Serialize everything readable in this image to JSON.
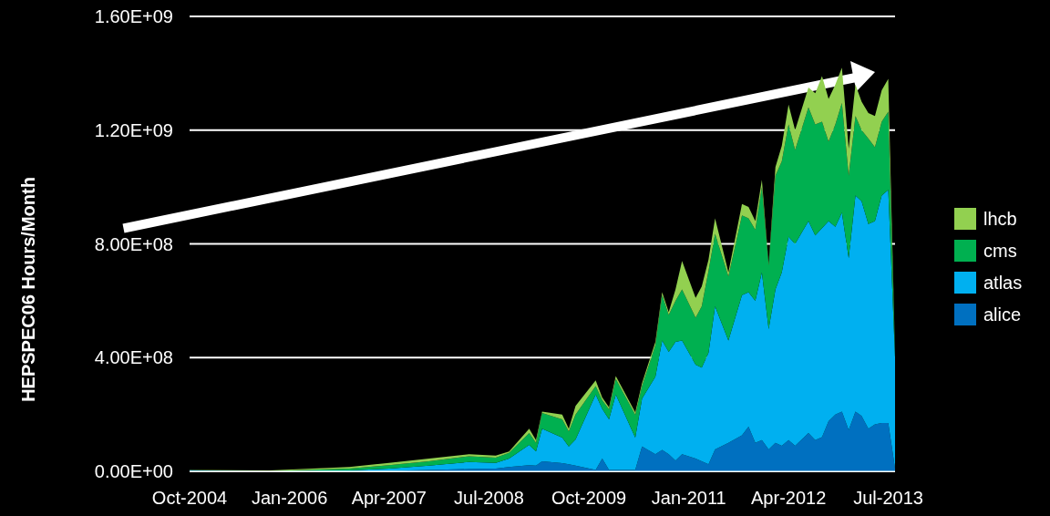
{
  "chart_data": {
    "type": "area",
    "stacked": true,
    "ylabel": "HEPSPEC06 Hours/Month",
    "x": [
      "2004-10",
      "2005-10",
      "2006-10",
      "2007-04",
      "2007-10",
      "2008-04",
      "2008-08",
      "2008-10",
      "2009-01",
      "2009-02",
      "2009-03",
      "2009-06",
      "2009-07",
      "2009-08",
      "2009-11",
      "2009-12",
      "2010-01",
      "2010-02",
      "2010-05",
      "2010-06",
      "2010-08",
      "2010-09",
      "2010-10",
      "2010-11",
      "2010-12",
      "2011-02",
      "2011-03",
      "2011-04",
      "2011-05",
      "2011-07",
      "2011-09",
      "2011-10",
      "2011-11",
      "2011-12",
      "2012-01",
      "2012-02",
      "2012-03",
      "2012-04",
      "2012-05",
      "2012-07",
      "2012-08",
      "2012-09",
      "2012-10",
      "2012-11",
      "2012-12",
      "2013-01",
      "2013-02",
      "2013-03",
      "2013-04",
      "2013-05",
      "2013-06",
      "2013-07",
      "2013-08"
    ],
    "series": [
      {
        "name": "alice",
        "color": "#0070c0",
        "values": [
          1000000.0,
          0,
          0,
          2000000.0,
          5000000.0,
          8000000.0,
          10000000.0,
          15000000.0,
          22000000.0,
          20000000.0,
          35000000.0,
          29000000.0,
          25000000.0,
          20000000.0,
          5000000.0,
          45000000.0,
          5000000.0,
          5000000.0,
          5000000.0,
          87000000.0,
          60000000.0,
          75000000.0,
          60000000.0,
          38000000.0,
          60000000.0,
          45000000.0,
          35000000.0,
          25000000.0,
          77000000.0,
          100000000.0,
          127000000.0,
          157000000.0,
          100000000.0,
          110000000.0,
          77000000.0,
          100000000.0,
          90000000.0,
          110000000.0,
          90000000.0,
          135000000.0,
          110000000.0,
          120000000.0,
          176000000.0,
          200000000.0,
          210000000.0,
          145000000.0,
          210000000.0,
          195000000.0,
          150000000.0,
          165000000.0,
          170000000.0,
          170000000.0,
          10000000.0
        ]
      },
      {
        "name": "atlas",
        "color": "#00b0f0",
        "values": [
          3000000.0,
          0,
          3000000.0,
          8000000.0,
          15000000.0,
          25000000.0,
          20000000.0,
          30000000.0,
          71000000.0,
          50000000.0,
          115000000.0,
          90000000.0,
          62000000.0,
          92000000.0,
          265000000.0,
          175000000.0,
          178000000.0,
          265000000.0,
          114000000.0,
          169000000.0,
          273000000.0,
          385000000.0,
          360000000.0,
          417000000.0,
          400000000.0,
          330000000.0,
          330000000.0,
          392000000.0,
          503000000.0,
          360000000.0,
          493000000.0,
          473000000.0,
          500000000.0,
          590000000.0,
          423000000.0,
          540000000.0,
          610000000.0,
          715000000.0,
          710000000.0,
          745000000.0,
          720000000.0,
          735000000.0,
          704000000.0,
          660000000.0,
          700000000.0,
          605000000.0,
          760000000.0,
          755000000.0,
          720000000.0,
          715000000.0,
          800000000.0,
          820000000.0,
          390000000.0
        ]
      },
      {
        "name": "cms",
        "color": "#00b050",
        "values": [
          0,
          1000000.0,
          7000000.0,
          12000000.0,
          15000000.0,
          20000000.0,
          18000000.0,
          20000000.0,
          42000000.0,
          30000000.0,
          55000000.0,
          64000000.0,
          53000000.0,
          88000000.0,
          30000000.0,
          30000000.0,
          35000000.0,
          55000000.0,
          80000000.0,
          44000000.0,
          110000000.0,
          160000000.0,
          130000000.0,
          145000000.0,
          180000000.0,
          165000000.0,
          215000000.0,
          288000000.0,
          255000000.0,
          225000000.0,
          280000000.0,
          260000000.0,
          250000000.0,
          300000000.0,
          225000000.0,
          400000000.0,
          390000000.0,
          395000000.0,
          330000000.0,
          400000000.0,
          390000000.0,
          375000000.0,
          280000000.0,
          360000000.0,
          385000000.0,
          290000000.0,
          280000000.0,
          250000000.0,
          300000000.0,
          260000000.0,
          260000000.0,
          275000000.0,
          10000000.0
        ]
      },
      {
        "name": "lhcb",
        "color": "#92d050",
        "values": [
          1000000.0,
          2000000.0,
          5000000.0,
          8000000.0,
          10000000.0,
          7000000.0,
          7000000.0,
          5000000.0,
          15000000.0,
          10000000.0,
          5000000.0,
          17000000.0,
          10000000.0,
          30000000.0,
          20000000.0,
          10000000.0,
          7000000.0,
          10000000.0,
          9000000.0,
          10000000.0,
          12000000.0,
          10000000.0,
          10000000.0,
          40000000.0,
          100000000.0,
          70000000.0,
          70000000.0,
          40000000.0,
          55000000.0,
          15000000.0,
          40000000.0,
          40000000.0,
          30000000.0,
          25000000.0,
          5000000.0,
          30000000.0,
          55000000.0,
          70000000.0,
          70000000.0,
          70000000.0,
          110000000.0,
          160000000.0,
          150000000.0,
          140000000.0,
          125000000.0,
          95000000.0,
          110000000.0,
          100000000.0,
          90000000.0,
          110000000.0,
          110000000.0,
          115000000.0,
          0
        ]
      }
    ],
    "xlim": [
      "2004-10",
      "2013-08"
    ],
    "xticks": [
      {
        "value": "2004-10",
        "label": "Oct-2004"
      },
      {
        "value": "2006-01",
        "label": "Jan-2006"
      },
      {
        "value": "2007-04",
        "label": "Apr-2007"
      },
      {
        "value": "2008-07",
        "label": "Jul-2008"
      },
      {
        "value": "2009-10",
        "label": "Oct-2009"
      },
      {
        "value": "2011-01",
        "label": "Jan-2011"
      },
      {
        "value": "2012-04",
        "label": "Apr-2012"
      },
      {
        "value": "2013-07",
        "label": "Jul-2013"
      }
    ],
    "ylim": [
      0,
      1600000000
    ],
    "yticks": [
      {
        "value": 0,
        "label": "0.00E+00"
      },
      {
        "value": 400000000,
        "label": "4.00E+08"
      },
      {
        "value": 800000000,
        "label": "8.00E+08"
      },
      {
        "value": 1200000000,
        "label": "1.20E+09"
      },
      {
        "value": 1600000000,
        "label": "1.60E+09"
      }
    ],
    "grid": "y",
    "legend": "right"
  }
}
